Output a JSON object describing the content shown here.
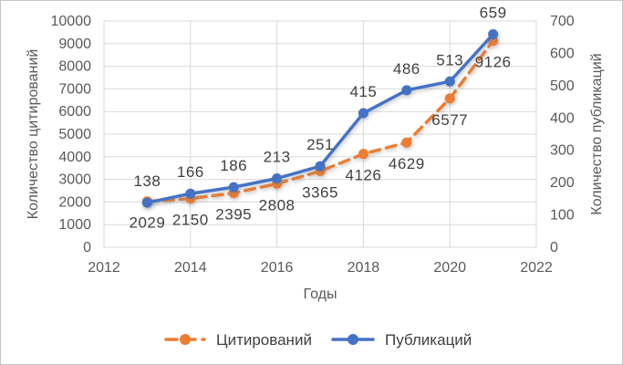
{
  "chart_data": {
    "type": "line",
    "x": [
      2013,
      2014,
      2015,
      2016,
      2017,
      2018,
      2019,
      2020,
      2021
    ],
    "series": [
      {
        "name": "Цитирований",
        "axis": "left",
        "color": "#ED7D31",
        "dash": true,
        "label_position": "below",
        "values": [
          2029,
          2150,
          2395,
          2808,
          3365,
          4126,
          4629,
          6577,
          9126
        ]
      },
      {
        "name": "Публикаций",
        "axis": "right",
        "color": "#4472C4",
        "dash": false,
        "label_position": "above",
        "values": [
          138,
          166,
          186,
          213,
          251,
          415,
          486,
          513,
          659
        ]
      }
    ],
    "xlabel": "Годы",
    "ylabel_left": "Количество цитирований",
    "ylabel_right": "Количество публикаций",
    "xlim": [
      2012,
      2022
    ],
    "ylim_left": [
      0,
      10000
    ],
    "ylim_right": [
      0,
      700
    ],
    "x_ticks": [
      2012,
      2014,
      2016,
      2018,
      2020,
      2022
    ],
    "left_ticks": [
      0,
      1000,
      2000,
      3000,
      4000,
      5000,
      6000,
      7000,
      8000,
      9000,
      10000
    ],
    "right_ticks": [
      0,
      100,
      200,
      300,
      400,
      500,
      600,
      700
    ],
    "grid": "horizontal-left-axis + vertical-x-ticks",
    "legend_position": "bottom",
    "gridline_color": "#D9D9D9",
    "tick_label_color": "#595959",
    "data_label_color": "#404040"
  }
}
